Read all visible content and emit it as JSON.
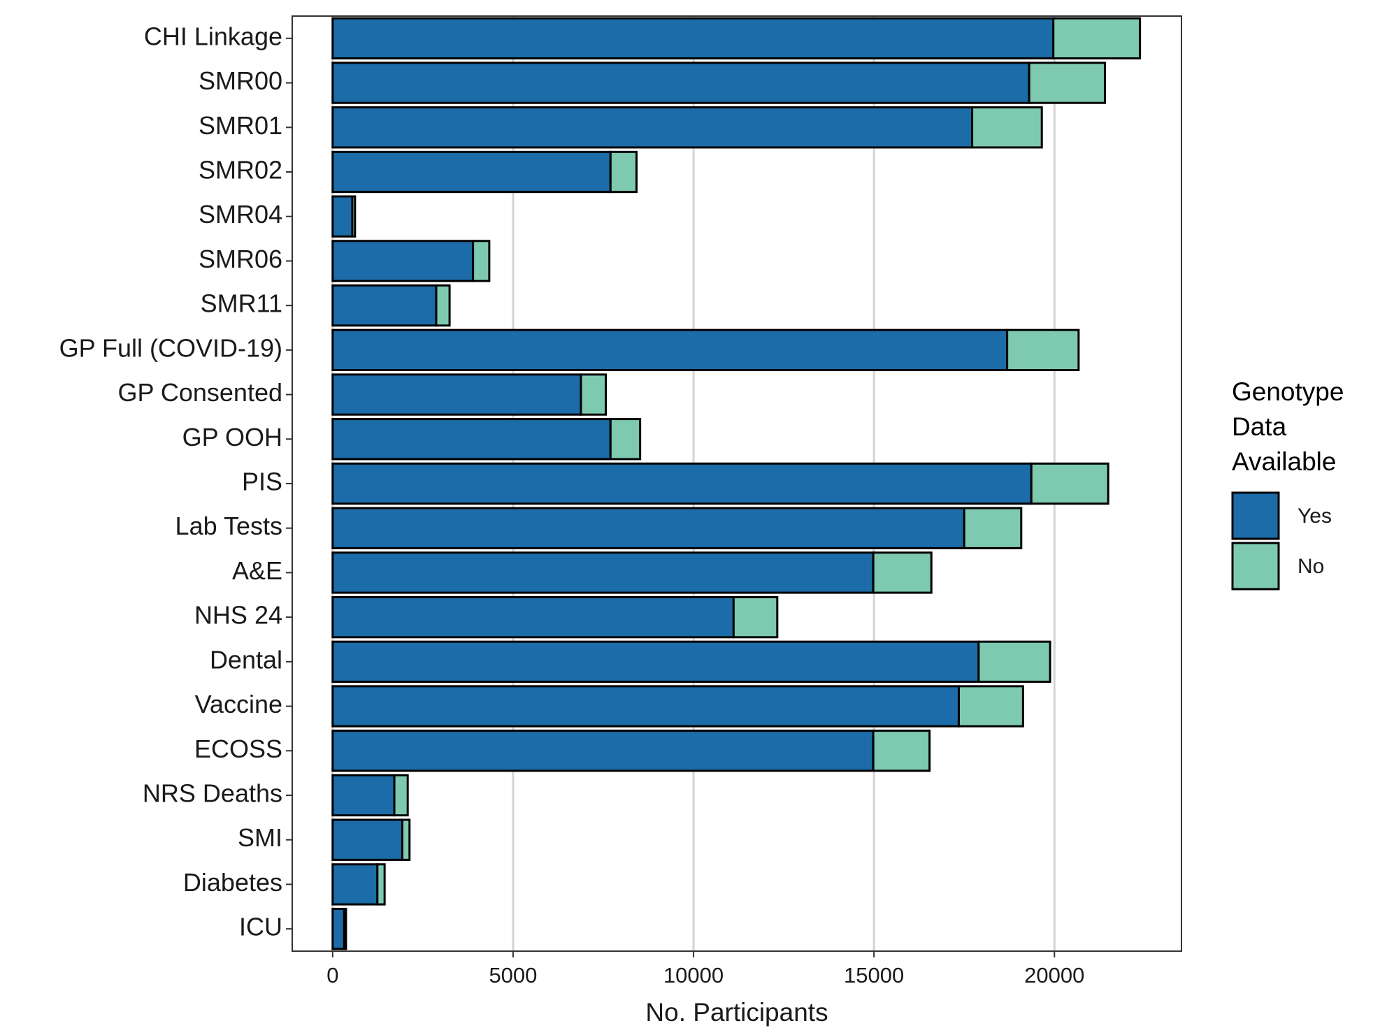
{
  "chart_data": {
    "type": "bar",
    "orientation": "horizontal",
    "stacked": true,
    "categories": [
      "CHI Linkage",
      "SMR00",
      "SMR01",
      "SMR02",
      "SMR04",
      "SMR06",
      "SMR11",
      "GP Full (COVID-19)",
      "GP Consented",
      "GP OOH",
      "PIS",
      "Lab Tests",
      "A&E",
      "NHS 24",
      "Dental",
      "Vaccine",
      "ECOSS",
      "NRS Deaths",
      "SMI",
      "Diabetes",
      "ICU"
    ],
    "series": [
      {
        "name": "Yes",
        "color": "#1b6ca8",
        "values": [
          19970,
          19300,
          17720,
          7700,
          545,
          3890,
          2870,
          18690,
          6880,
          7700,
          19360,
          17500,
          14980,
          11110,
          17900,
          17350,
          14980,
          1710,
          1930,
          1240,
          320
        ]
      },
      {
        "name": "No",
        "color": "#7ecab0",
        "values": [
          2400,
          2100,
          1930,
          720,
          75,
          450,
          370,
          1980,
          690,
          820,
          2130,
          1580,
          1610,
          1210,
          1980,
          1780,
          1560,
          370,
          200,
          200,
          50
        ]
      }
    ],
    "x_label": "No. Participants",
    "legend_title": "Genotype Data Available",
    "xlim": [
      -1120,
      23520
    ],
    "xticks": [
      0,
      5000,
      10000,
      15000,
      20000
    ],
    "grid": true
  }
}
